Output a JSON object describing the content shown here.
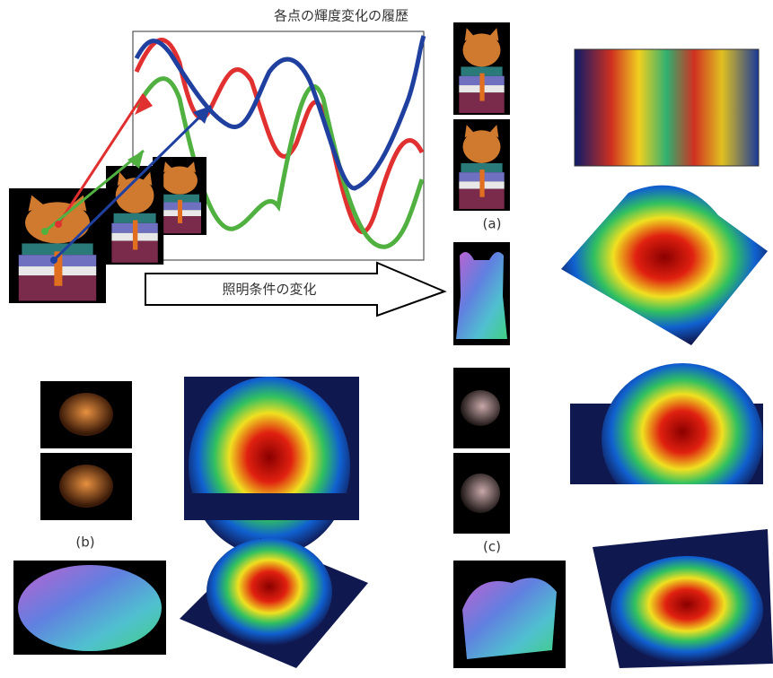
{
  "header": {
    "title": "各点の輝度変化の履歴"
  },
  "arrow_label": "照明条件の変化",
  "panels": [
    {
      "label": "(a)"
    },
    {
      "label": "(b)"
    },
    {
      "label": "(c)"
    }
  ]
}
